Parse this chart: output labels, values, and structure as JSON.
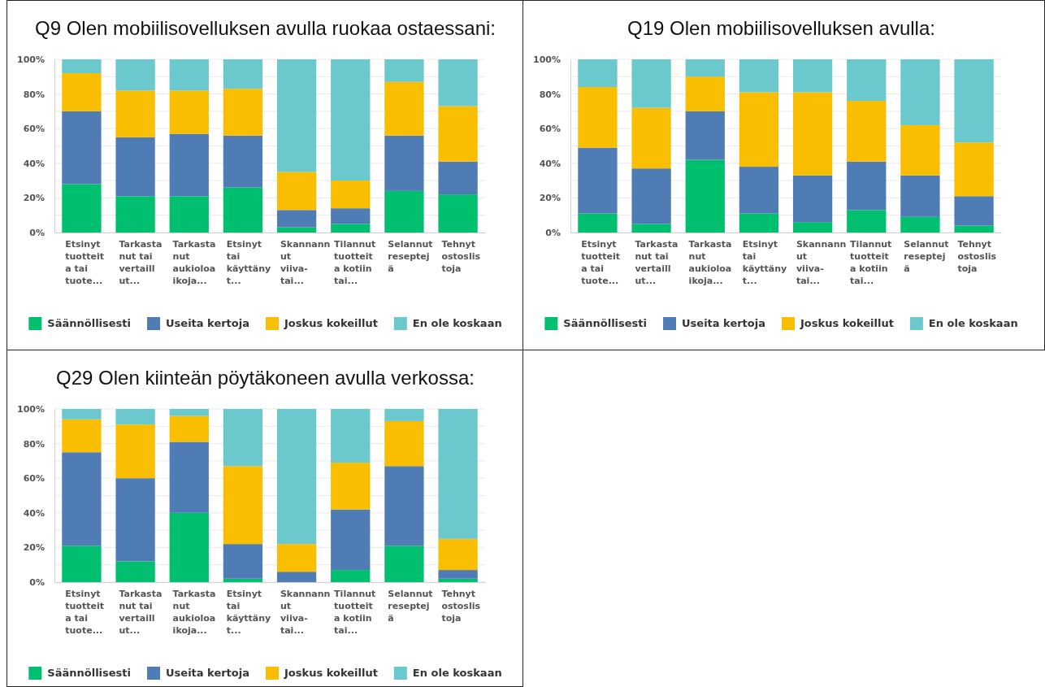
{
  "chart_data": [
    {
      "type": "bar",
      "stacked": true,
      "title": "Q9 Olen mobiilisovelluksen avulla ruokaa ostaessani:",
      "categories": [
        "Etsinyt\ntuotteit\na tai\ntuote...",
        "Tarkasta\nnut tai\nvertaill\nut...",
        "Tarkasta\nnut\naukioloa\nikoja...",
        "Etsinyt\ntai\nkäyttäny\nt...",
        "Skannann\nut\nviiva-\ntai...",
        "Tilannut\ntuotteit\na kotiin\ntai...",
        "Selannut\nreseptej\nä",
        "Tehnyt\nostoslis\ntoja"
      ],
      "series": [
        {
          "name": "Säännöllisesti",
          "color": "#00bf6f",
          "values": [
            28,
            21,
            21,
            26,
            3,
            5,
            24,
            22
          ]
        },
        {
          "name": "Useita kertoja",
          "color": "#507cb6",
          "values": [
            42,
            34,
            36,
            30,
            10,
            9,
            32,
            19
          ]
        },
        {
          "name": "Joskus kokeillut",
          "color": "#f9be00",
          "values": [
            22,
            27,
            25,
            27,
            22,
            16,
            31,
            32
          ]
        },
        {
          "name": "En ole koskaan",
          "color": "#6bc8cd",
          "values": [
            8,
            18,
            18,
            17,
            65,
            70,
            13,
            27
          ]
        }
      ],
      "ylim": [
        0,
        100
      ],
      "yticks": [
        {
          "value": 0,
          "label": "0%"
        },
        {
          "value": 10,
          "label": null
        },
        {
          "value": 20,
          "label": "20%"
        },
        {
          "value": 30,
          "label": null
        },
        {
          "value": 40,
          "label": "40%"
        },
        {
          "value": 50,
          "label": null
        },
        {
          "value": 60,
          "label": "60%"
        },
        {
          "value": 70,
          "label": null
        },
        {
          "value": 80,
          "label": "80%"
        },
        {
          "value": 90,
          "label": null
        },
        {
          "value": 100,
          "label": "100%"
        }
      ],
      "grid": "y",
      "legend": "bottom"
    },
    {
      "type": "bar",
      "stacked": true,
      "title": "Q19 Olen mobiilisovelluksen avulla:",
      "categories": [
        "Etsinyt\ntuotteit\na tai\ntuote...",
        "Tarkasta\nnut tai\nvertaill\nut...",
        "Tarkasta\nnut\naukioloa\nikoja...",
        "Etsinyt\ntai\nkäyttäny\nt...",
        "Skannann\nut\nviiva-\ntai...",
        "Tilannut\ntuotteit\na kotiin\ntai...",
        "Selannut\nreseptej\nä",
        "Tehnyt\nostoslis\ntoja"
      ],
      "series": [
        {
          "name": "Säännöllisesti",
          "color": "#00bf6f",
          "values": [
            11,
            5,
            42,
            11,
            6,
            13,
            9,
            4
          ]
        },
        {
          "name": "Useita kertoja",
          "color": "#507cb6",
          "values": [
            38,
            32,
            28,
            27,
            27,
            28,
            24,
            17
          ]
        },
        {
          "name": "Joskus kokeillut",
          "color": "#f9be00",
          "values": [
            35,
            35,
            20,
            43,
            48,
            35,
            29,
            31
          ]
        },
        {
          "name": "En ole koskaan",
          "color": "#6bc8cd",
          "values": [
            16,
            28,
            10,
            19,
            19,
            24,
            38,
            48
          ]
        }
      ],
      "ylim": [
        0,
        100
      ],
      "yticks": [
        {
          "value": 0,
          "label": "0%"
        },
        {
          "value": 10,
          "label": null
        },
        {
          "value": 20,
          "label": "20%"
        },
        {
          "value": 30,
          "label": null
        },
        {
          "value": 40,
          "label": "40%"
        },
        {
          "value": 50,
          "label": null
        },
        {
          "value": 60,
          "label": "60%"
        },
        {
          "value": 70,
          "label": null
        },
        {
          "value": 80,
          "label": "80%"
        },
        {
          "value": 90,
          "label": null
        },
        {
          "value": 100,
          "label": "100%"
        }
      ],
      "grid": "y",
      "legend": "bottom"
    },
    {
      "type": "bar",
      "stacked": true,
      "title": "Q29 Olen kiinteän pöytäkoneen avulla verkossa:",
      "categories": [
        "Etsinyt\ntuotteit\na tai\ntuote...",
        "Tarkasta\nnut tai\nvertaill\nut...",
        "Tarkasta\nnut\naukioloa\nikoja...",
        "Etsinyt\ntai\nkäyttäny\nt...",
        "Skannann\nut\nviiva-\ntai...",
        "Tilannut\ntuotteit\na kotiin\ntai...",
        "Selannut\nreseptej\nä",
        "Tehnyt\nostoslis\ntoja"
      ],
      "series": [
        {
          "name": "Säännöllisesti",
          "color": "#00bf6f",
          "values": [
            21,
            12,
            40,
            2,
            0,
            7,
            21,
            2
          ]
        },
        {
          "name": "Useita kertoja",
          "color": "#507cb6",
          "values": [
            54,
            48,
            41,
            20,
            6,
            35,
            46,
            5
          ]
        },
        {
          "name": "Joskus kokeillut",
          "color": "#f9be00",
          "values": [
            19,
            31,
            15,
            45,
            16,
            27,
            26,
            18
          ]
        },
        {
          "name": "En ole koskaan",
          "color": "#6bc8cd",
          "values": [
            6,
            9,
            4,
            33,
            78,
            31,
            7,
            75
          ]
        }
      ],
      "ylim": [
        0,
        100
      ],
      "yticks": [
        {
          "value": 0,
          "label": "0%"
        },
        {
          "value": 10,
          "label": null
        },
        {
          "value": 20,
          "label": "20%"
        },
        {
          "value": 30,
          "label": null
        },
        {
          "value": 40,
          "label": "40%"
        },
        {
          "value": 50,
          "label": null
        },
        {
          "value": 60,
          "label": "60%"
        },
        {
          "value": 70,
          "label": null
        },
        {
          "value": 80,
          "label": "80%"
        },
        {
          "value": 90,
          "label": null
        },
        {
          "value": 100,
          "label": "100%"
        }
      ],
      "grid": "y",
      "legend": "bottom"
    }
  ]
}
